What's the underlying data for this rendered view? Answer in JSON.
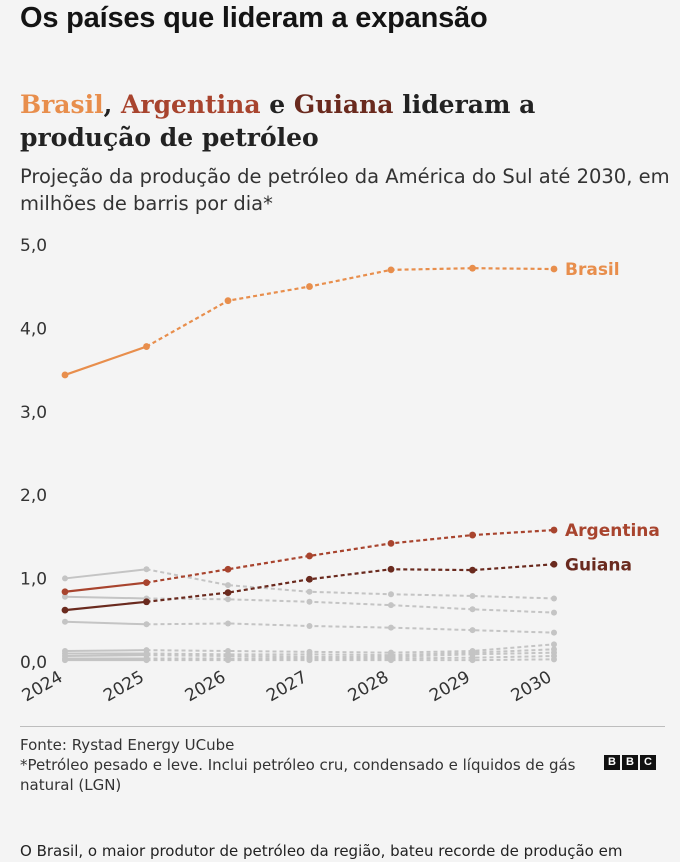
{
  "headline": "Os países que lideram a expansão",
  "title": {
    "brasil": "Brasil",
    "sep1": ", ",
    "argentina": "Argentina",
    "sep2": " e ",
    "guiana": "Guiana",
    "rest": " lideram a produção de petróleo"
  },
  "subtitle": "Projeção da produção de petróleo da América do Sul até 2030, em milhões de barris por dia*",
  "source": "Fonte: Rystad Energy UCube",
  "note": "*Petróleo pesado e leve. Inclui petróleo cru, condensado e líquidos de gás natural (LGN)",
  "logo": [
    "B",
    "B",
    "C"
  ],
  "body_text": "O Brasil, o maior produtor de petróleo da região, bateu recorde de produção em",
  "chart_data": {
    "type": "line",
    "x": [
      "2024",
      "2025",
      "2026",
      "2027",
      "2028",
      "2029",
      "2030"
    ],
    "ylim": [
      0,
      5
    ],
    "yticks": [
      "0,0",
      "1,0",
      "2,0",
      "3,0",
      "4,0",
      "5,0"
    ],
    "ytick_values": [
      0,
      1,
      2,
      3,
      4,
      5
    ],
    "historical_until": "2025",
    "projection_style": "dashed",
    "highlighted_series": [
      {
        "name": "Brasil",
        "color": "#e88e4c",
        "values": [
          3.43,
          3.77,
          4.32,
          4.49,
          4.69,
          4.71,
          4.7
        ]
      },
      {
        "name": "Argentina",
        "color": "#a8442e",
        "values": [
          0.83,
          0.94,
          1.1,
          1.26,
          1.41,
          1.51,
          1.57
        ]
      },
      {
        "name": "Guiana",
        "color": "#6a2a1e",
        "values": [
          0.61,
          0.71,
          0.82,
          0.98,
          1.1,
          1.09,
          1.16
        ]
      }
    ],
    "other_series_color": "#c4c4c4",
    "other_series": [
      {
        "values": [
          0.99,
          1.1,
          0.91,
          0.83,
          0.8,
          0.78,
          0.75
        ]
      },
      {
        "values": [
          0.77,
          0.75,
          0.74,
          0.71,
          0.67,
          0.62,
          0.58
        ]
      },
      {
        "values": [
          0.47,
          0.44,
          0.45,
          0.42,
          0.4,
          0.37,
          0.34
        ]
      },
      {
        "values": [
          0.12,
          0.13,
          0.12,
          0.11,
          0.1,
          0.12,
          0.2
        ]
      },
      {
        "values": [
          0.09,
          0.09,
          0.08,
          0.08,
          0.07,
          0.1,
          0.14
        ]
      },
      {
        "values": [
          0.06,
          0.07,
          0.06,
          0.05,
          0.05,
          0.08,
          0.1
        ]
      },
      {
        "values": [
          0.03,
          0.03,
          0.03,
          0.03,
          0.03,
          0.04,
          0.06
        ]
      },
      {
        "values": [
          0.01,
          0.01,
          0.01,
          0.01,
          0.01,
          0.01,
          0.02
        ]
      }
    ]
  }
}
